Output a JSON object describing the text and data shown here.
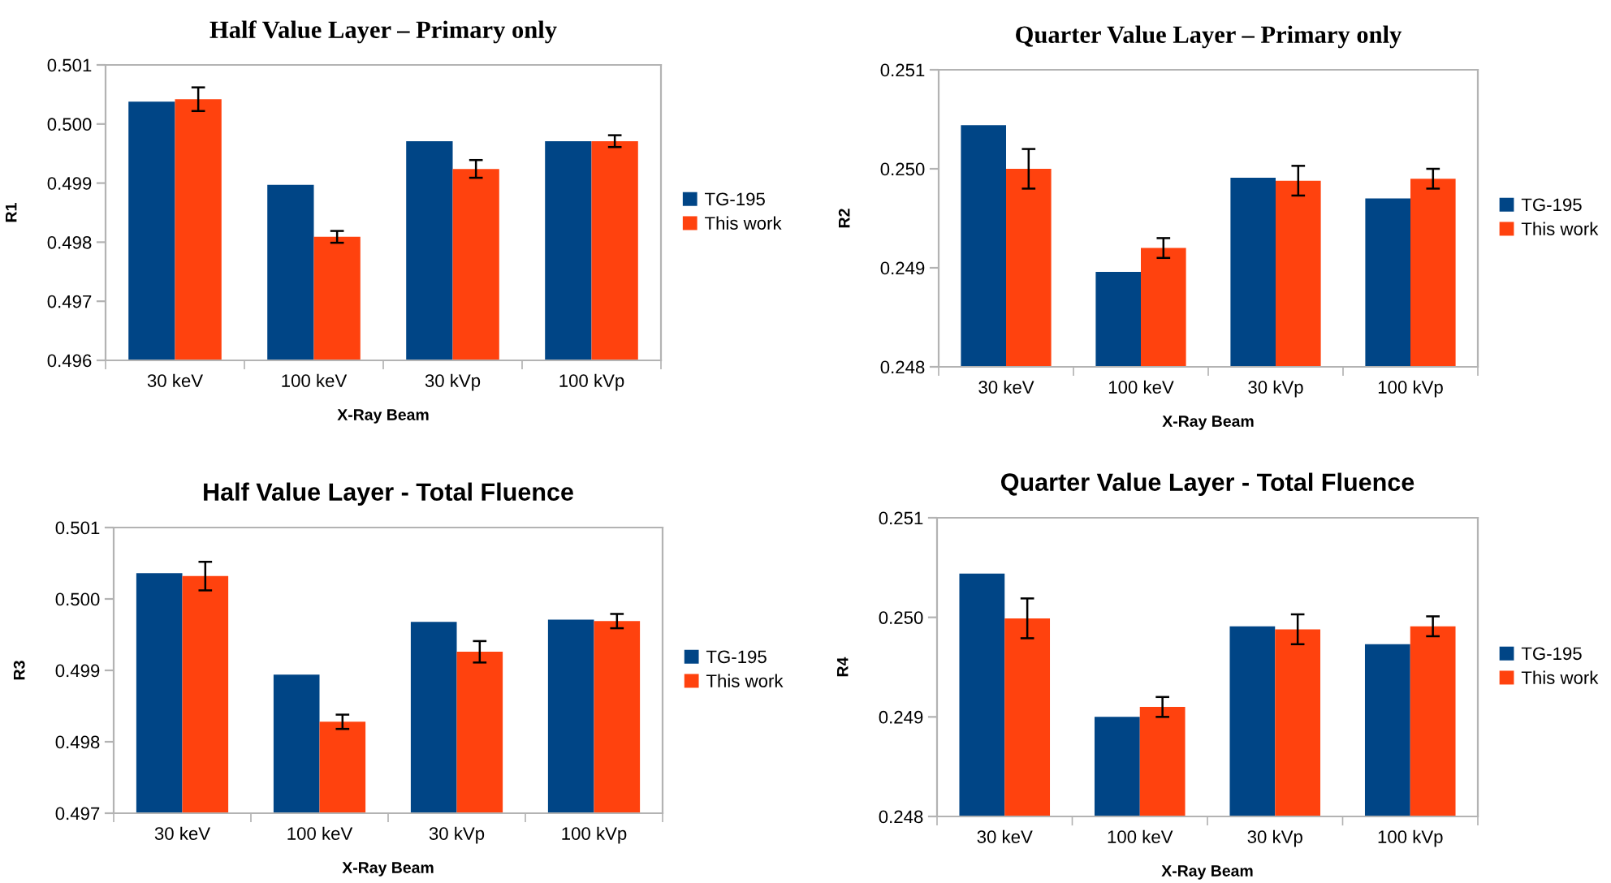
{
  "chart_data": [
    {
      "type": "bar",
      "title": "Half Value Layer – Primary only",
      "xlabel": "X-Ray Beam",
      "ylabel": "R1",
      "categories": [
        "30 keV",
        "100 keV",
        "30 kVp",
        "100 kVp"
      ],
      "series": [
        {
          "name": "TG-195",
          "color": "#004586",
          "values": [
            0.50038,
            0.49897,
            0.49971,
            0.49971
          ]
        },
        {
          "name": "This work",
          "color": "#ff420e",
          "values": [
            0.50042,
            0.49809,
            0.49924,
            0.49971
          ],
          "errors": [
            0.0002,
            0.0001,
            0.00015,
            0.0001
          ]
        }
      ],
      "ylim": [
        0.496,
        0.501
      ],
      "yticks": [
        {
          "value": 0.496,
          "label": "0.496"
        },
        {
          "value": 0.497,
          "label": "0.497"
        },
        {
          "value": 0.498,
          "label": "0.498"
        },
        {
          "value": 0.499,
          "label": "0.499"
        },
        {
          "value": 0.5,
          "label": "0.500"
        },
        {
          "value": 0.501,
          "label": "0.501"
        }
      ],
      "grid": false,
      "legend": "right"
    },
    {
      "type": "bar",
      "title": "Quarter Value Layer – Primary only",
      "xlabel": "X-Ray Beam",
      "ylabel": "R2",
      "categories": [
        "30 keV",
        "100 keV",
        "30 kVp",
        "100 kVp"
      ],
      "series": [
        {
          "name": "TG-195",
          "color": "#004586",
          "values": [
            0.25044,
            0.24896,
            0.24991,
            0.2497
          ]
        },
        {
          "name": "This work",
          "color": "#ff420e",
          "values": [
            0.25,
            0.2492,
            0.24988,
            0.2499
          ],
          "errors": [
            0.0002,
            0.0001,
            0.00015,
            0.0001
          ]
        }
      ],
      "ylim": [
        0.248,
        0.251
      ],
      "yticks": [
        {
          "value": 0.248,
          "label": "0.248"
        },
        {
          "value": 0.249,
          "label": "0.249"
        },
        {
          "value": 0.25,
          "label": "0.250"
        },
        {
          "value": 0.251,
          "label": "0.251"
        }
      ],
      "grid": false,
      "legend": "right"
    },
    {
      "type": "bar",
      "title": "Half Value Layer - Total Fluence",
      "xlabel": "X-Ray Beam",
      "ylabel": "R3",
      "categories": [
        "30 keV",
        "100 keV",
        "30 kVp",
        "100 kVp"
      ],
      "series": [
        {
          "name": "TG-195",
          "color": "#004586",
          "values": [
            0.50036,
            0.49894,
            0.49968,
            0.49971
          ]
        },
        {
          "name": "This work",
          "color": "#ff420e",
          "values": [
            0.50032,
            0.49828,
            0.49926,
            0.49969
          ],
          "errors": [
            0.0002,
            0.0001,
            0.00015,
            0.0001
          ]
        }
      ],
      "ylim": [
        0.497,
        0.501
      ],
      "yticks": [
        {
          "value": 0.497,
          "label": "0.497"
        },
        {
          "value": 0.498,
          "label": "0.498"
        },
        {
          "value": 0.499,
          "label": "0.499"
        },
        {
          "value": 0.5,
          "label": "0.500"
        },
        {
          "value": 0.501,
          "label": "0.501"
        }
      ],
      "grid": false,
      "legend": "right"
    },
    {
      "type": "bar",
      "title": "Quarter Value Layer - Total Fluence",
      "xlabel": "X-Ray Beam",
      "ylabel": "R4",
      "categories": [
        "30 keV",
        "100 keV",
        "30 kVp",
        "100 kVp"
      ],
      "series": [
        {
          "name": "TG-195",
          "color": "#004586",
          "values": [
            0.25044,
            0.249,
            0.24991,
            0.24973
          ]
        },
        {
          "name": "This work",
          "color": "#ff420e",
          "values": [
            0.24999,
            0.2491,
            0.24988,
            0.24991
          ],
          "errors": [
            0.0002,
            0.0001,
            0.00015,
            0.0001
          ]
        }
      ],
      "ylim": [
        0.248,
        0.251
      ],
      "yticks": [
        {
          "value": 0.248,
          "label": "0.248"
        },
        {
          "value": 0.249,
          "label": "0.249"
        },
        {
          "value": 0.25,
          "label": "0.250"
        },
        {
          "value": 0.251,
          "label": "0.251"
        }
      ],
      "grid": false,
      "legend": "right"
    }
  ]
}
